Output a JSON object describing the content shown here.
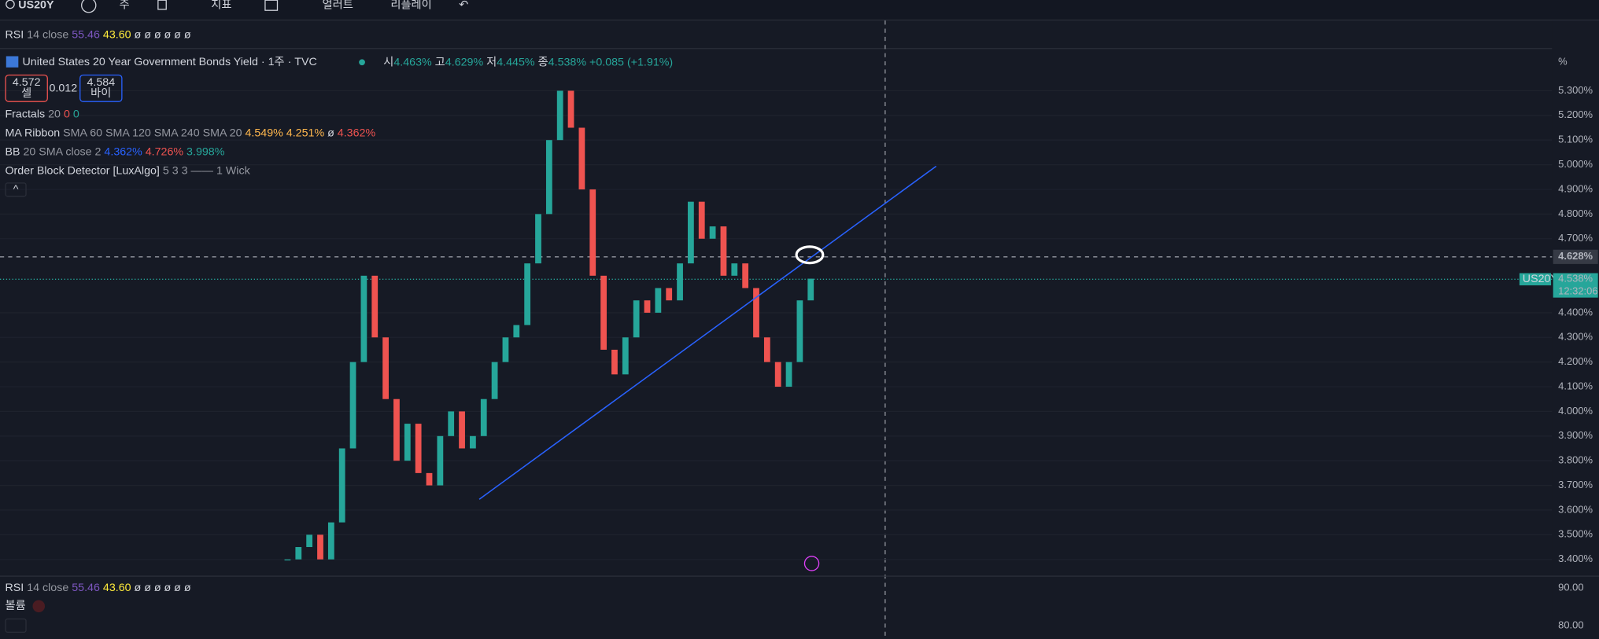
{
  "toolbar": {
    "symbol": "US20Y",
    "interval": "주",
    "indicators": "지표",
    "alerts": "얼러트",
    "replay": "리플레이"
  },
  "top_legend": {
    "name": "RSI",
    "params": "14 close",
    "v1": "55.46",
    "v2": "43.60",
    "rest": "ø ø ø ø ø ø"
  },
  "header": {
    "title": "United States 20 Year Government Bonds Yield · 1주 · TVC",
    "open_label": "시",
    "open": "4.463%",
    "high_label": "고",
    "high": "4.629%",
    "low_label": "저",
    "low": "4.445%",
    "close_label": "종",
    "close": "4.538%",
    "change": "+0.085 (+1.91%)"
  },
  "trade": {
    "sell_price": "4.572",
    "sell_label": "셀",
    "spread": "0.012",
    "buy_price": "4.584",
    "buy_label": "바이"
  },
  "indicators": [
    {
      "name": "Fractals",
      "params": "20",
      "values": [
        "0",
        "0"
      ]
    },
    {
      "name": "MA Ribbon",
      "params": "SMA 60 SMA 120 SMA 240 SMA 20",
      "values": [
        "4.549%",
        "4.251%",
        "ø",
        "4.362%"
      ]
    },
    {
      "name": "BB",
      "params": "20 SMA close 2",
      "values": [
        "4.362%",
        "4.726%",
        "3.998%"
      ]
    },
    {
      "name": "Order Block Detector [LuxAlgo]",
      "params": "5 3 3 —— 1 Wick",
      "values": []
    }
  ],
  "price_axis": {
    "unit": "%",
    "crosshair_price": "4.628%",
    "symbol_tag": "US20Y",
    "last_price": "4.538%",
    "countdown": "12:32:06"
  },
  "chart_data": {
    "type": "candlestick",
    "ylim": [
      3.334,
      5.473
    ],
    "yticks": [
      {
        "value": 5.3,
        "label": "5.300%"
      },
      {
        "value": 5.2,
        "label": "5.200%"
      },
      {
        "value": 5.1,
        "label": "5.100%"
      },
      {
        "value": 5.0,
        "label": "5.000%"
      },
      {
        "value": 4.9,
        "label": "4.900%"
      },
      {
        "value": 4.8,
        "label": "4.800%"
      },
      {
        "value": 4.7,
        "label": "4.700%"
      },
      {
        "value": 4.4,
        "label": "4.400%"
      },
      {
        "value": 4.3,
        "label": "4.300%"
      },
      {
        "value": 4.2,
        "label": "4.200%"
      },
      {
        "value": 4.1,
        "label": "4.100%"
      },
      {
        "value": 4.0,
        "label": "4.000%"
      },
      {
        "value": 3.9,
        "label": "3.900%"
      },
      {
        "value": 3.8,
        "label": "3.800%"
      },
      {
        "value": 3.7,
        "label": "3.700%"
      },
      {
        "value": 3.6,
        "label": "3.600%"
      },
      {
        "value": 3.5,
        "label": "3.500%"
      },
      {
        "value": 3.4,
        "label": "3.400%"
      }
    ],
    "values": [
      3.4,
      3.45,
      3.5,
      3.4,
      3.55,
      3.85,
      4.2,
      4.55,
      4.3,
      4.05,
      3.8,
      3.95,
      3.75,
      3.7,
      3.9,
      4.0,
      3.85,
      3.9,
      4.05,
      4.2,
      4.3,
      4.35,
      4.6,
      4.8,
      5.1,
      5.3,
      5.15,
      4.9,
      4.55,
      4.25,
      4.15,
      4.3,
      4.45,
      4.4,
      4.5,
      4.45,
      4.6,
      4.85,
      4.7,
      4.75,
      4.55,
      4.6,
      4.5,
      4.3,
      4.2,
      4.1,
      4.2,
      4.45,
      4.538
    ],
    "up_color": "#26a69a",
    "down_color": "#ef5350"
  },
  "lower_pane": {
    "rsi_name": "RSI",
    "rsi_params": "14 close",
    "rsi_v1": "55.46",
    "rsi_v2": "43.60",
    "rsi_rest": "ø ø ø ø ø ø",
    "volume": "볼륨",
    "axis_top": "90.00",
    "axis_mid": "80.00"
  }
}
